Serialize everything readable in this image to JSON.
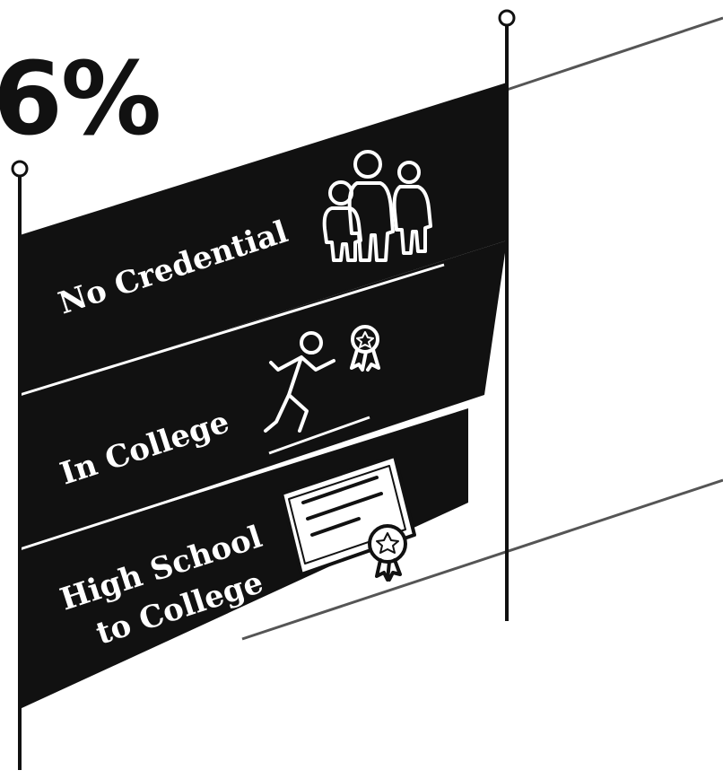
{
  "headline": {
    "value": "6%"
  },
  "bands": [
    {
      "label": "No Credential",
      "icon": "family-group-icon"
    },
    {
      "label": "In College",
      "icon": "running-person-award-icon"
    },
    {
      "label_line1": "High School",
      "label_line2": "to College",
      "icon": "diploma-certificate-icon"
    }
  ],
  "colors": {
    "ink": "#111111",
    "paper": "#ffffff"
  }
}
